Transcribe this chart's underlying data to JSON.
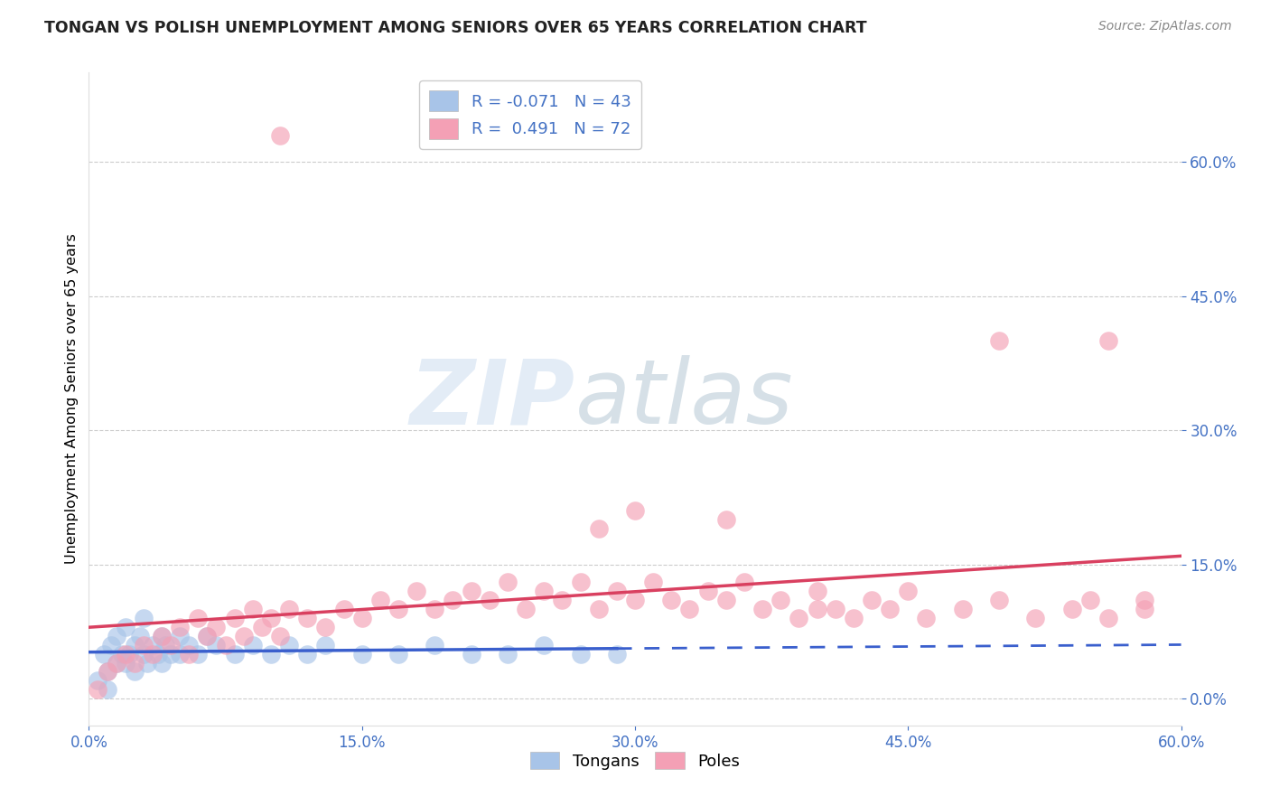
{
  "title": "TONGAN VS POLISH UNEMPLOYMENT AMONG SENIORS OVER 65 YEARS CORRELATION CHART",
  "source": "Source: ZipAtlas.com",
  "ylabel": "Unemployment Among Seniors over 65 years",
  "xmin": 0.0,
  "xmax": 0.6,
  "ymin": -0.03,
  "ymax": 0.7,
  "tongan_color": "#a8c4e8",
  "pole_color": "#f4a0b5",
  "tongan_line_color": "#3a5fcd",
  "pole_line_color": "#d94060",
  "tongan_R": -0.071,
  "tongan_N": 43,
  "pole_R": 0.491,
  "pole_N": 72,
  "grid_color": "#cccccc",
  "background_color": "#ffffff",
  "tick_color": "#4472c4",
  "tongans_x": [
    0.005,
    0.008,
    0.01,
    0.01,
    0.012,
    0.015,
    0.015,
    0.018,
    0.02,
    0.02,
    0.022,
    0.025,
    0.025,
    0.028,
    0.03,
    0.03,
    0.032,
    0.035,
    0.038,
    0.04,
    0.04,
    0.042,
    0.045,
    0.05,
    0.05,
    0.055,
    0.06,
    0.065,
    0.07,
    0.08,
    0.09,
    0.1,
    0.11,
    0.12,
    0.13,
    0.15,
    0.17,
    0.19,
    0.21,
    0.23,
    0.25,
    0.27,
    0.29
  ],
  "tongans_y": [
    0.02,
    0.05,
    0.03,
    0.01,
    0.06,
    0.04,
    0.07,
    0.05,
    0.04,
    0.08,
    0.05,
    0.06,
    0.03,
    0.07,
    0.05,
    0.09,
    0.04,
    0.06,
    0.05,
    0.07,
    0.04,
    0.06,
    0.05,
    0.07,
    0.05,
    0.06,
    0.05,
    0.07,
    0.06,
    0.05,
    0.06,
    0.05,
    0.06,
    0.05,
    0.06,
    0.05,
    0.05,
    0.06,
    0.05,
    0.05,
    0.06,
    0.05,
    0.05
  ],
  "poles_x": [
    0.005,
    0.01,
    0.015,
    0.02,
    0.025,
    0.03,
    0.035,
    0.04,
    0.045,
    0.05,
    0.055,
    0.06,
    0.065,
    0.07,
    0.075,
    0.08,
    0.085,
    0.09,
    0.095,
    0.1,
    0.105,
    0.11,
    0.12,
    0.13,
    0.14,
    0.15,
    0.16,
    0.17,
    0.18,
    0.19,
    0.2,
    0.21,
    0.22,
    0.23,
    0.24,
    0.25,
    0.26,
    0.27,
    0.28,
    0.29,
    0.3,
    0.31,
    0.32,
    0.33,
    0.34,
    0.35,
    0.36,
    0.37,
    0.38,
    0.39,
    0.4,
    0.41,
    0.42,
    0.43,
    0.44,
    0.45,
    0.46,
    0.48,
    0.5,
    0.52,
    0.54,
    0.56,
    0.58,
    0.105,
    0.3,
    0.35,
    0.28,
    0.4,
    0.5,
    0.55,
    0.58,
    0.56
  ],
  "poles_y": [
    0.01,
    0.03,
    0.04,
    0.05,
    0.04,
    0.06,
    0.05,
    0.07,
    0.06,
    0.08,
    0.05,
    0.09,
    0.07,
    0.08,
    0.06,
    0.09,
    0.07,
    0.1,
    0.08,
    0.09,
    0.07,
    0.1,
    0.09,
    0.08,
    0.1,
    0.09,
    0.11,
    0.1,
    0.12,
    0.1,
    0.11,
    0.12,
    0.11,
    0.13,
    0.1,
    0.12,
    0.11,
    0.13,
    0.1,
    0.12,
    0.11,
    0.13,
    0.11,
    0.1,
    0.12,
    0.11,
    0.13,
    0.1,
    0.11,
    0.09,
    0.12,
    0.1,
    0.09,
    0.11,
    0.1,
    0.12,
    0.09,
    0.1,
    0.11,
    0.09,
    0.1,
    0.09,
    0.11,
    0.63,
    0.21,
    0.2,
    0.19,
    0.1,
    0.4,
    0.11,
    0.1,
    0.4
  ]
}
